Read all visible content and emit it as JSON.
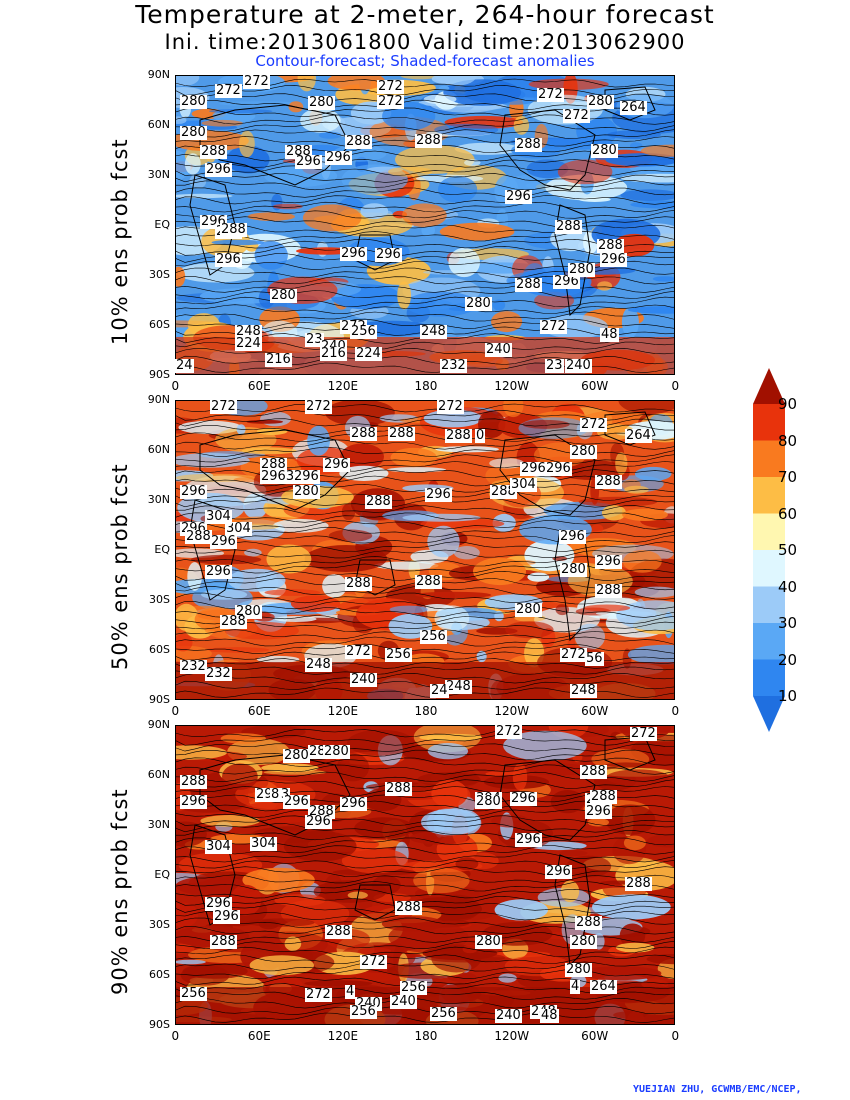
{
  "title_line1": "Temperature at 2-meter, 264-hour forecast",
  "title_line2": "Ini. time:2013061800   Valid time:2013062900",
  "title_line3": "Contour-forecast; Shaded-forecast anomalies",
  "credit": "YUEJIAN ZHU, GCWMB/EMC/NCEP,",
  "panels": [
    {
      "label": "10% ens prob fcst",
      "dominant": "cool",
      "contour_labels": [
        "272",
        "272",
        "280",
        "272",
        "280",
        "272",
        "272",
        "280",
        "272",
        "264",
        "280",
        "288",
        "288",
        "296",
        "288",
        "288",
        "288",
        "280",
        "296",
        "296",
        "296",
        "296",
        "296",
        "288",
        "296",
        "296",
        "288",
        "296",
        "288",
        "296",
        "288",
        "280",
        "288",
        "280",
        "280",
        "248",
        "272",
        "256",
        "23",
        "240",
        "248",
        "272",
        "24",
        "48",
        "224",
        "216",
        "216",
        "224",
        "232",
        "240",
        "23",
        "240",
        "24"
      ]
    },
    {
      "label": "50% ens prob fcst",
      "dominant": "warm",
      "contour_labels": [
        "272",
        "272",
        "272",
        "288",
        "288",
        "288",
        "0",
        "272",
        "264",
        "280",
        "288",
        "2963",
        "296",
        "280",
        "296",
        "288",
        "296",
        "296",
        "296",
        "288",
        "304",
        "296",
        "288",
        "296",
        "304",
        "304",
        "296",
        "288",
        "296",
        "280",
        "296",
        "296",
        "288",
        "288",
        "288",
        "280",
        "280",
        "288",
        "256",
        "232",
        "248",
        "272",
        "256",
        "272",
        "56",
        "232",
        "248",
        "240",
        "24",
        "248"
      ]
    },
    {
      "label": "90% ens prob fcst",
      "dominant": "hot",
      "contour_labels": [
        "272",
        "272",
        "288",
        "280",
        "2963",
        "8",
        "288",
        "280",
        "288",
        "288",
        "296",
        "296",
        "288",
        "296",
        "288",
        "304",
        "288",
        "296",
        "280",
        "296",
        "304",
        "304",
        "296",
        "296",
        "296",
        "288",
        "296",
        "296",
        "288",
        "288",
        "288",
        "288",
        "280",
        "280",
        "280",
        "272",
        "4",
        "264",
        "80",
        "256",
        "272",
        "4",
        "240",
        "256",
        "240",
        "256",
        "240",
        "248",
        "48",
        "256"
      ]
    }
  ],
  "lat_ticks": [
    "90N",
    "60N",
    "30N",
    "EQ",
    "30S",
    "60S",
    "90S"
  ],
  "lon_ticks": [
    "0",
    "60E",
    "120E",
    "180",
    "120W",
    "60W",
    "0"
  ],
  "colorbar": {
    "levels": [
      "10",
      "20",
      "30",
      "40",
      "50",
      "60",
      "70",
      "80",
      "90"
    ],
    "colors": [
      "#1f6fe0",
      "#2f86f0",
      "#5aa8f5",
      "#9ccbf8",
      "#dff7ff",
      "#fff7b0",
      "#fdbd45",
      "#f97a1f",
      "#e8330c",
      "#a11000"
    ]
  }
}
